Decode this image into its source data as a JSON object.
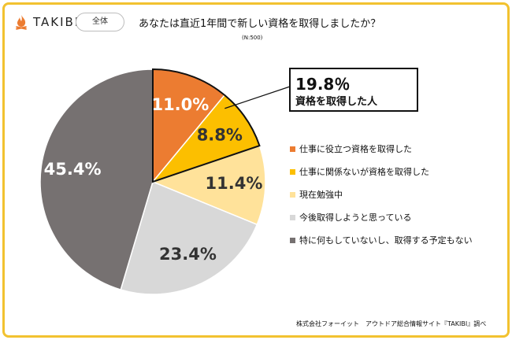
{
  "brand": {
    "logo_text": "TAKIBI",
    "tag": "全体"
  },
  "header": {
    "title": "あなたは直近1年間で新しい資格を取得しましたか？",
    "subtitle": "(N:500)"
  },
  "callout": {
    "value": "19.8％",
    "label": "資格を取得した人"
  },
  "footer": {
    "source": "株式会社フォーイット　アウトドア総合情報サイト『TAKIBI』調べ"
  },
  "chart_data": {
    "type": "pie",
    "n": 500,
    "slices": [
      {
        "label": "仕事に役立つ資格を取得した",
        "value": 11.0,
        "display": "11.0%",
        "color": "#ec7c31",
        "text_color": "#ffffff"
      },
      {
        "label": "仕事に関係ないが資格を取得した",
        "value": 8.8,
        "display": "8.8%",
        "color": "#fcbf00",
        "text_color": "#333333"
      },
      {
        "label": "現在勉強中",
        "value": 11.4,
        "display": "11.4%",
        "color": "#ffe29a",
        "text_color": "#333333"
      },
      {
        "label": "今後取得しようと思っている",
        "value": 23.4,
        "display": "23.4%",
        "color": "#d8d8d8",
        "text_color": "#333333"
      },
      {
        "label": "特に何もしていないし、取得する予定もない",
        "value": 45.4,
        "display": "45.4%",
        "color": "#767171",
        "text_color": "#ffffff"
      }
    ],
    "highlight": {
      "slices": [
        0,
        1
      ],
      "value": "19.8％",
      "label": "資格を取得した人"
    },
    "legend_position": "right"
  }
}
